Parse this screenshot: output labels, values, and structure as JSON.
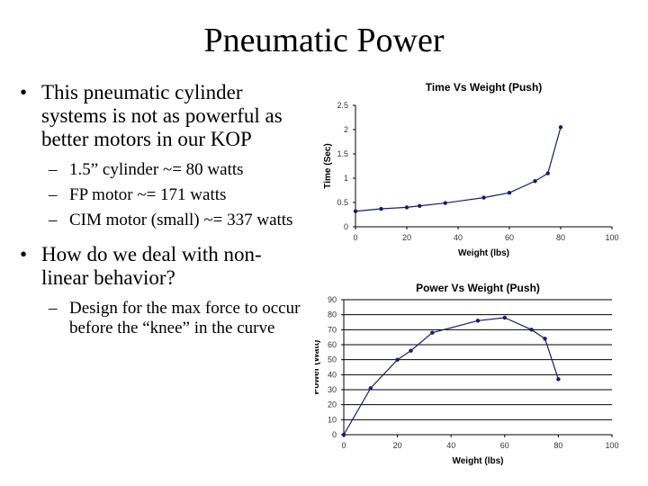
{
  "slide": {
    "title": "Pneumatic Power",
    "bullets": [
      {
        "text": "This pneumatic cylinder systems is not as powerful as better motors in our KOP",
        "subs": [
          "1.5” cylinder ~= 80 watts",
          "FP motor ~= 171 watts",
          "CIM motor (small) ~= 337 watts"
        ]
      },
      {
        "text": "How do we deal with non-linear behavior?",
        "subs": [
          "Design for the max force to occur before the “knee” in the curve"
        ]
      }
    ],
    "bullet_glyph": "•",
    "sub_glyph": "–"
  },
  "chart_data": [
    {
      "type": "line",
      "title": "Time Vs Weight (Push)",
      "xlabel": "Weight (lbs)",
      "ylabel": "Time (Sec)",
      "xlim": [
        0,
        100
      ],
      "ylim": [
        0,
        2.5
      ],
      "xticks": [
        0,
        20,
        40,
        60,
        80,
        100
      ],
      "yticks": [
        0,
        0.5,
        1,
        1.5,
        2,
        2.5
      ],
      "grid": false,
      "series": [
        {
          "x": [
            0,
            10,
            20,
            25,
            35,
            50,
            60,
            70,
            75,
            80
          ],
          "y": [
            0.32,
            0.37,
            0.4,
            0.43,
            0.49,
            0.6,
            0.7,
            0.94,
            1.1,
            2.05
          ]
        }
      ],
      "color": "#1a1a6e"
    },
    {
      "type": "line",
      "title": "Power Vs Weight (Push)",
      "xlabel": "Weight (lbs)",
      "ylabel": "Power (Watt)",
      "xlim": [
        0,
        100
      ],
      "ylim": [
        0,
        90
      ],
      "xticks": [
        0,
        20,
        40,
        60,
        80,
        100
      ],
      "yticks": [
        0,
        10,
        20,
        30,
        40,
        50,
        60,
        70,
        80,
        90
      ],
      "grid": "horizontal",
      "series": [
        {
          "x": [
            0,
            10,
            20,
            25,
            33,
            50,
            60,
            70,
            75,
            80
          ],
          "y": [
            0,
            31,
            50,
            56,
            68,
            76,
            78,
            70,
            64,
            37
          ]
        }
      ],
      "color": "#1a1a6e"
    }
  ]
}
